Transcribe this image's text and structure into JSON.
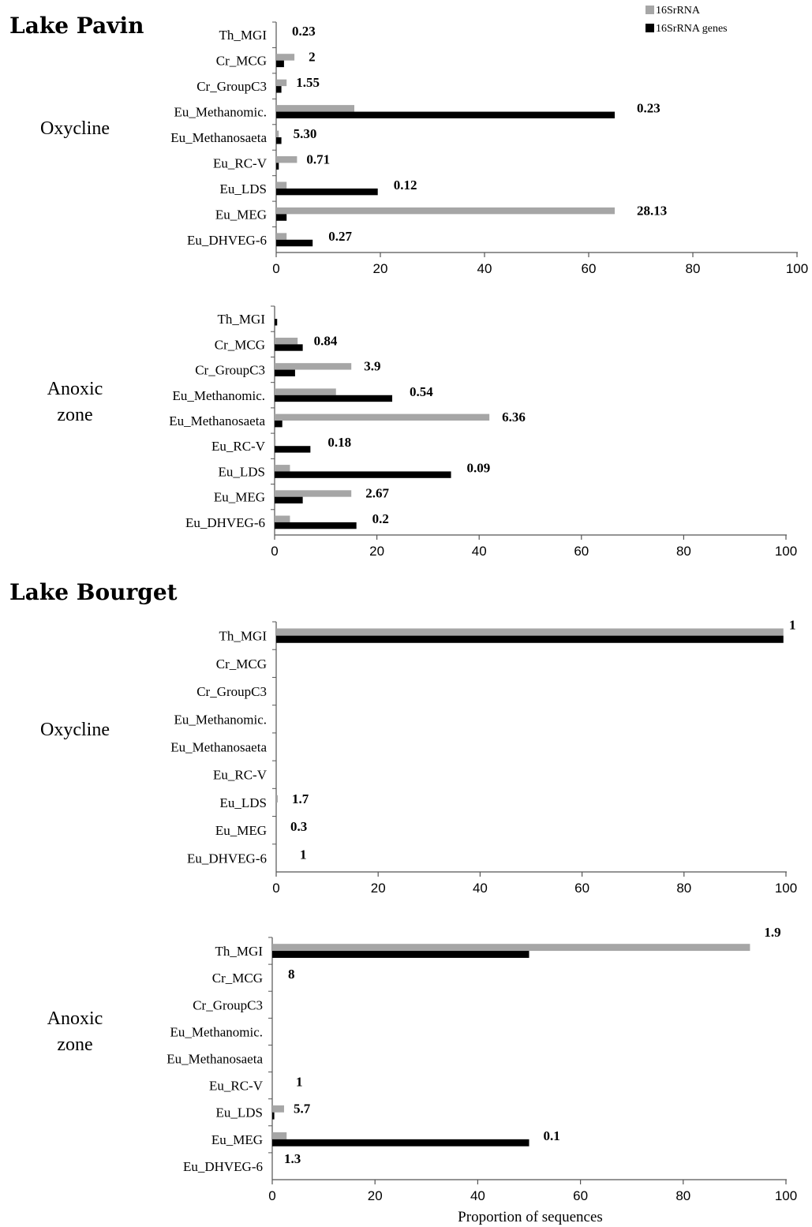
{
  "legend": [
    {
      "label": "16SrRNA",
      "color": "#a6a6a6"
    },
    {
      "label": "16SrRNA genes",
      "color": "#000000"
    }
  ],
  "sections": [
    "Lake Pavin",
    "Lake Bourget"
  ],
  "chart_data": [
    {
      "type": "bar",
      "orientation": "horizontal",
      "section": "Lake Pavin",
      "zone": "Oxycline",
      "categories": [
        "Th_MGI",
        "Cr_MCG",
        "Cr_GroupC3",
        "Eu_Methanomic.",
        "Eu_Methanosaeta",
        "Eu_RC-V",
        "Eu_LDS",
        "Eu_MEG",
        "Eu_DHVEG-6"
      ],
      "series": [
        {
          "name": "16SrRNA",
          "values": [
            0,
            3.5,
            2,
            15,
            0.5,
            4,
            2,
            65,
            2
          ]
        },
        {
          "name": "16SrRNA genes",
          "values": [
            0,
            1.5,
            1,
            65,
            1,
            0.5,
            19.5,
            2,
            7
          ]
        }
      ],
      "annotations": [
        "0.23",
        "2",
        "1.55",
        "0.23",
        "5.30",
        "0.71",
        "0.12",
        "28.13",
        "0.27"
      ],
      "xlim": [
        0,
        100
      ],
      "xticks": [
        0,
        20,
        40,
        60,
        80,
        100
      ]
    },
    {
      "type": "bar",
      "orientation": "horizontal",
      "section": "Lake Pavin",
      "zone": "Anoxic zone",
      "categories": [
        "Th_MGI",
        "Cr_MCG",
        "Cr_GroupC3",
        "Eu_Methanomic.",
        "Eu_Methanosaeta",
        "Eu_RC-V",
        "Eu_LDS",
        "Eu_MEG",
        "Eu_DHVEG-6"
      ],
      "series": [
        {
          "name": "16SrRNA",
          "values": [
            0,
            4.5,
            15,
            12,
            42,
            0.2,
            3,
            15,
            3
          ]
        },
        {
          "name": "16SrRNA genes",
          "values": [
            0.5,
            5.5,
            4,
            23,
            1.5,
            7,
            34.5,
            5.5,
            16
          ]
        }
      ],
      "annotations": [
        "",
        "0.84",
        "3.9",
        "0.54",
        "6.36",
        "0.18",
        "0.09",
        "2.67",
        "0.2"
      ],
      "xlim": [
        0,
        100
      ],
      "xticks": [
        0,
        20,
        40,
        60,
        80,
        100
      ]
    },
    {
      "type": "bar",
      "orientation": "horizontal",
      "section": "Lake Bourget",
      "zone": "Oxycline",
      "categories": [
        "Th_MGI",
        "Cr_MCG",
        "Cr_GroupC3",
        "Eu_Methanomic.",
        "Eu_Methanosaeta",
        "Eu_RC-V",
        "Eu_LDS",
        "Eu_MEG",
        "Eu_DHVEG-6"
      ],
      "series": [
        {
          "name": "16SrRNA",
          "values": [
            99.5,
            0,
            0,
            0,
            0,
            0,
            0.3,
            0,
            0
          ]
        },
        {
          "name": "16SrRNA genes",
          "values": [
            99.5,
            0,
            0,
            0,
            0,
            0,
            0,
            0,
            0
          ]
        }
      ],
      "annotations": [
        "1",
        "",
        "",
        "",
        "",
        "",
        "1.7",
        "0.3",
        "1"
      ],
      "xlim": [
        0,
        100
      ],
      "xticks": [
        0,
        20,
        40,
        60,
        80,
        100
      ]
    },
    {
      "type": "bar",
      "orientation": "horizontal",
      "section": "Lake Bourget",
      "zone": "Anoxic zone",
      "categories": [
        "Th_MGI",
        "Cr_MCG",
        "Cr_GroupC3",
        "Eu_Methanomic.",
        "Eu_Methanosaeta",
        "Eu_RC-V",
        "Eu_LDS",
        "Eu_MEG",
        "Eu_DHVEG-6"
      ],
      "series": [
        {
          "name": "16SrRNA",
          "values": [
            93,
            0,
            0,
            0,
            0,
            0,
            2.3,
            2.8,
            0
          ]
        },
        {
          "name": "16SrRNA genes",
          "values": [
            50,
            0,
            0,
            0,
            0,
            0,
            0.4,
            50,
            0
          ]
        }
      ],
      "annotations": [
        "1.9",
        "8",
        "",
        "",
        "",
        "1",
        "5.7",
        "0.1",
        "1.3"
      ],
      "xlim": [
        0,
        100
      ],
      "xticks": [
        0,
        20,
        40,
        60,
        80,
        100
      ],
      "xlabel": "Proportion of sequences"
    }
  ]
}
